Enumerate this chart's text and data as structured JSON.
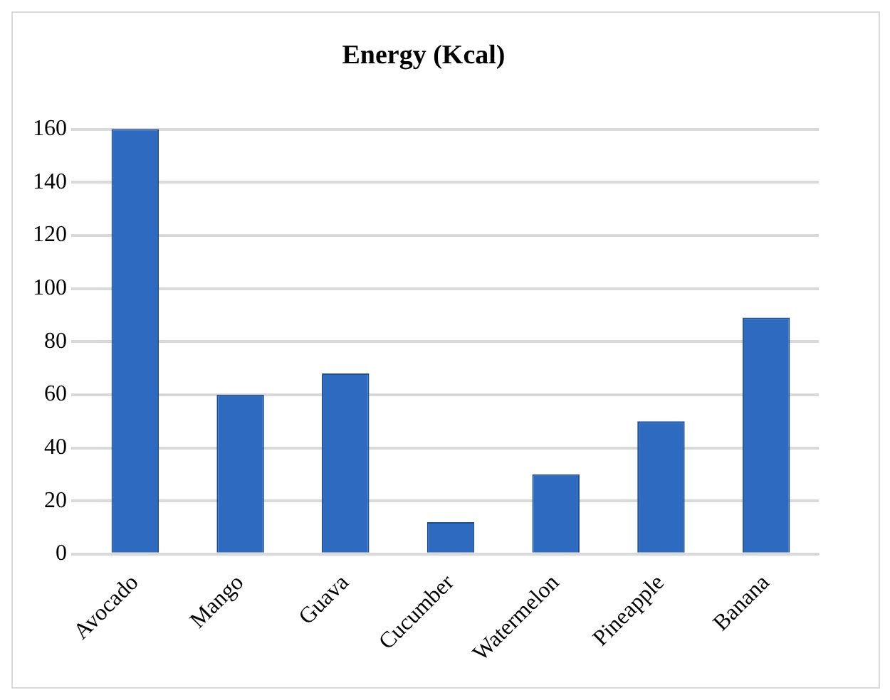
{
  "chart_data": {
    "type": "bar",
    "title": "Energy (Kcal)",
    "categories": [
      "Avocado",
      "Mango",
      "Guava",
      "Cucumber",
      "Watermelon",
      "Pineapple",
      "Banana"
    ],
    "values": [
      160,
      60,
      68,
      12,
      30,
      50,
      89
    ],
    "color": "#2e6bc0",
    "ylim": [
      0,
      160
    ],
    "yticks": [
      0,
      20,
      40,
      60,
      80,
      100,
      120,
      140,
      160
    ],
    "grid": "y"
  }
}
